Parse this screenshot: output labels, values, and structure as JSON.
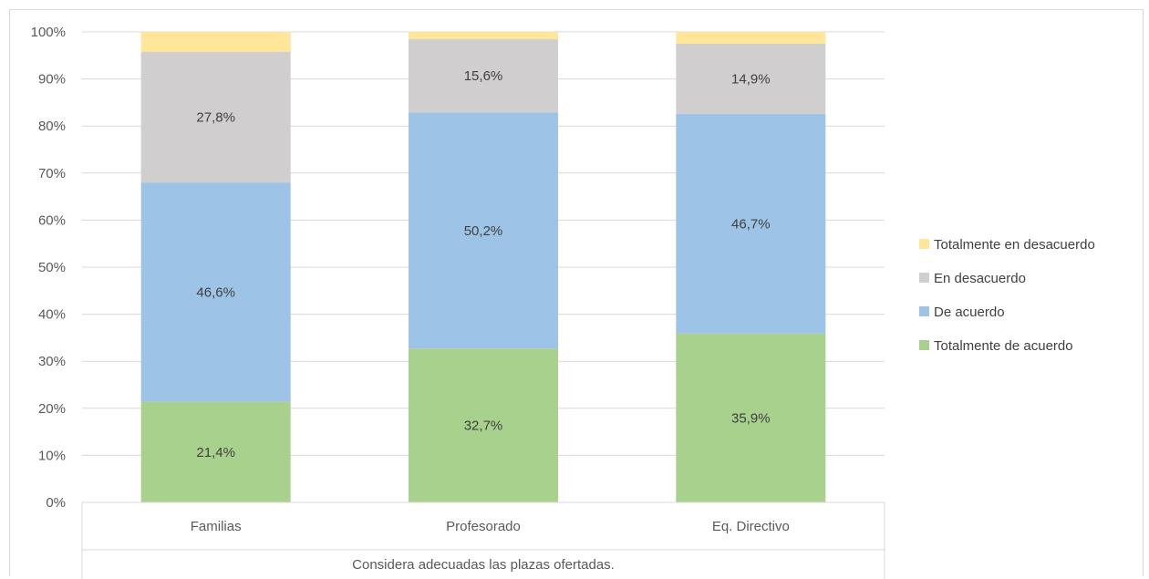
{
  "chart_data": {
    "type": "bar",
    "stacked": true,
    "percent_stacked": true,
    "categories": [
      "Familias",
      "Profesorado",
      "Eq. Directivo"
    ],
    "group_label": "Considera adecuadas las plazas ofertadas.",
    "ylim": [
      0,
      100
    ],
    "yticks": [
      "0%",
      "10%",
      "20%",
      "30%",
      "40%",
      "50%",
      "60%",
      "70%",
      "80%",
      "90%",
      "100%"
    ],
    "grid": true,
    "legend_position": "right",
    "series": [
      {
        "name": "Totalmente de acuerdo",
        "color": "#a9d18e",
        "values": [
          21.4,
          32.7,
          35.9
        ],
        "labels": [
          "21,4%",
          "32,7%",
          "35,9%"
        ]
      },
      {
        "name": "De acuerdo",
        "color": "#9dc3e6",
        "values": [
          46.6,
          50.2,
          46.7
        ],
        "labels": [
          "46,6%",
          "50,2%",
          "46,7%"
        ]
      },
      {
        "name": "En desacuerdo",
        "color": "#d0cece",
        "values": [
          27.8,
          15.6,
          14.9
        ],
        "labels": [
          "27,8%",
          "15,6%",
          "14,9%"
        ]
      },
      {
        "name": "Totalmente en desacuerdo",
        "color": "#ffe699",
        "values": [
          4.2,
          1.5,
          2.5
        ],
        "labels": [
          "",
          "",
          ""
        ]
      }
    ]
  }
}
